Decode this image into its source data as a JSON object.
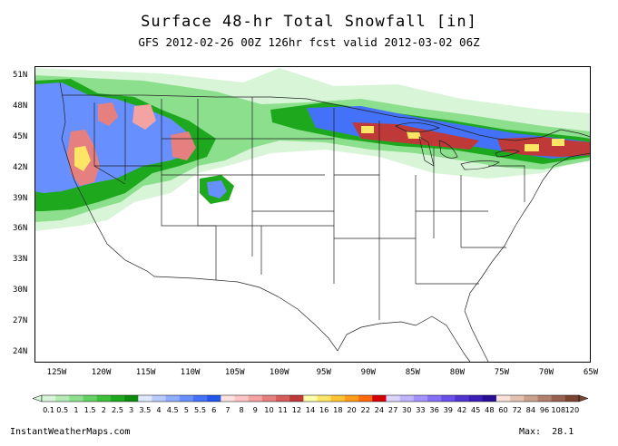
{
  "title": "Surface 48-hr Total Snowfall [in]",
  "subtitle": "GFS 2012-02-26 00Z 126hr fcst valid 2012-03-02 06Z",
  "lat_labels": [
    "51N",
    "48N",
    "45N",
    "42N",
    "39N",
    "36N",
    "33N",
    "30N",
    "27N",
    "24N"
  ],
  "lat_values": [
    51,
    48,
    45,
    42,
    39,
    36,
    33,
    30,
    27,
    24
  ],
  "lon_labels": [
    "125W",
    "120W",
    "115W",
    "110W",
    "105W",
    "100W",
    "95W",
    "90W",
    "85W",
    "80W",
    "75W",
    "70W",
    "65W"
  ],
  "lon_values": [
    -125,
    -120,
    -115,
    -110,
    -105,
    -100,
    -95,
    -90,
    -85,
    -80,
    -75,
    -70,
    -65
  ],
  "colorbar": {
    "labels": [
      "0.1",
      "0.5",
      "1",
      "1.5",
      "2",
      "2.5",
      "3",
      "3.5",
      "4",
      "4.5",
      "5",
      "5.5",
      "6",
      "7",
      "8",
      "9",
      "10",
      "11",
      "12",
      "14",
      "16",
      "18",
      "20",
      "22",
      "24",
      "27",
      "30",
      "33",
      "36",
      "39",
      "42",
      "45",
      "48",
      "60",
      "72",
      "84",
      "96",
      "108",
      "120"
    ],
    "colors": [
      "#d8f5d8",
      "#b4ebb4",
      "#8cdf8c",
      "#64d164",
      "#3cc03c",
      "#1ea81e",
      "#0e8c0e",
      "#dfe8ff",
      "#b7cbff",
      "#8fadff",
      "#678ffd",
      "#4371f7",
      "#2255ea",
      "#ffe1e1",
      "#fcc4c4",
      "#f4a3a3",
      "#e67f7f",
      "#d65c5c",
      "#bf3939",
      "#ffffaa",
      "#ffe566",
      "#ffc233",
      "#ff9a1a",
      "#ff6a0a",
      "#d40000",
      "#dcd6ff",
      "#c0b4ff",
      "#a392ff",
      "#8670f6",
      "#6a50e8",
      "#5034d2",
      "#3a1eb6",
      "#280e96",
      "#f6e2d8",
      "#e3c2b2",
      "#cba18e",
      "#b2806c",
      "#98604e",
      "#7a4433"
    ]
  },
  "footer": {
    "site": "InstantWeatherMaps.com",
    "max_label": "Max:",
    "max_value": "28.1"
  }
}
